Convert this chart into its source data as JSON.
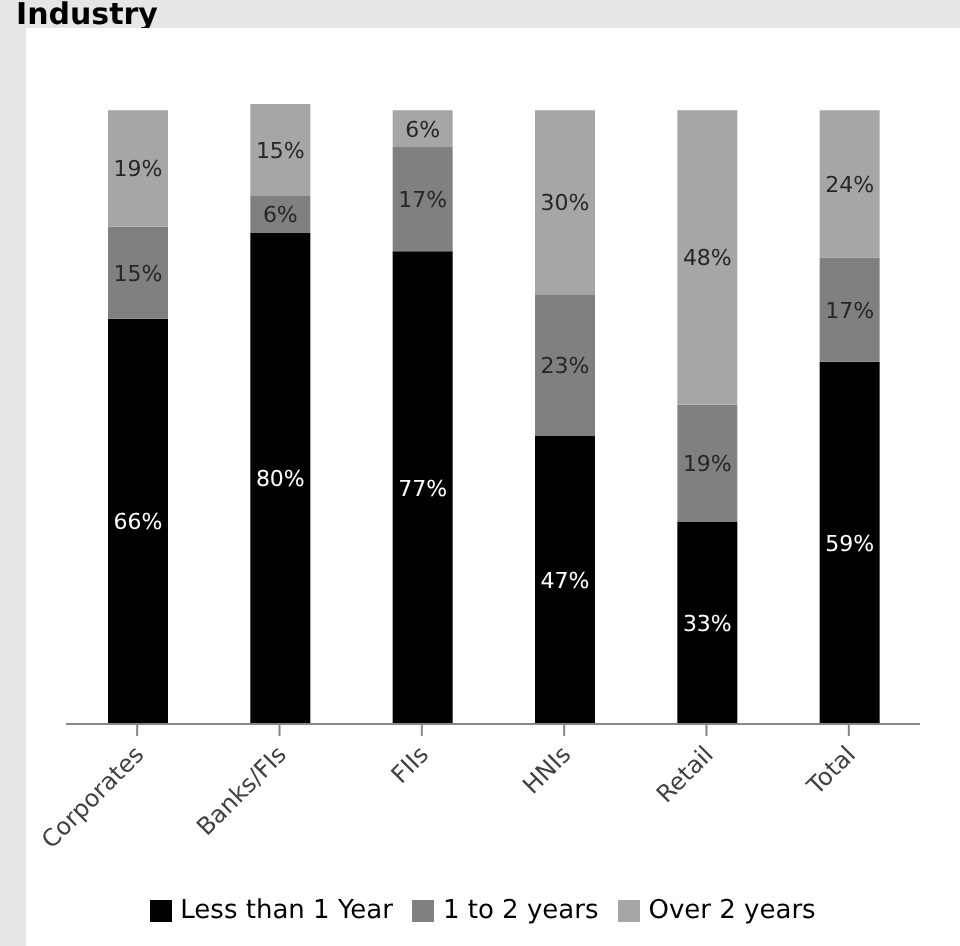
{
  "chart_data": {
    "type": "bar",
    "title": "Industry",
    "stacked": true,
    "legend": "bottom",
    "grid": false,
    "categories": [
      "Corporates",
      "Banks/FIs",
      "FIIs",
      "HNIs",
      "Retail",
      "Total"
    ],
    "series": [
      {
        "name": "Less than 1 Year",
        "color": "#000000",
        "values": [
          66,
          80,
          77,
          47,
          33,
          59
        ],
        "value_labels": [
          "66%",
          "80%",
          "77%",
          "47%",
          "33%",
          "59%"
        ]
      },
      {
        "name": "1 to 2 years",
        "color": "#808080",
        "values": [
          15,
          6,
          17,
          23,
          19,
          17
        ],
        "value_labels": [
          "15%",
          "6%",
          "17%",
          "23%",
          "19%",
          "17%"
        ]
      },
      {
        "name": "Over 2 years",
        "color": "#a6a6a6",
        "values": [
          19,
          15,
          6,
          30,
          48,
          24
        ],
        "value_labels": [
          "19%",
          "15%",
          "6%",
          "30%",
          "48%",
          "24%"
        ]
      }
    ]
  }
}
